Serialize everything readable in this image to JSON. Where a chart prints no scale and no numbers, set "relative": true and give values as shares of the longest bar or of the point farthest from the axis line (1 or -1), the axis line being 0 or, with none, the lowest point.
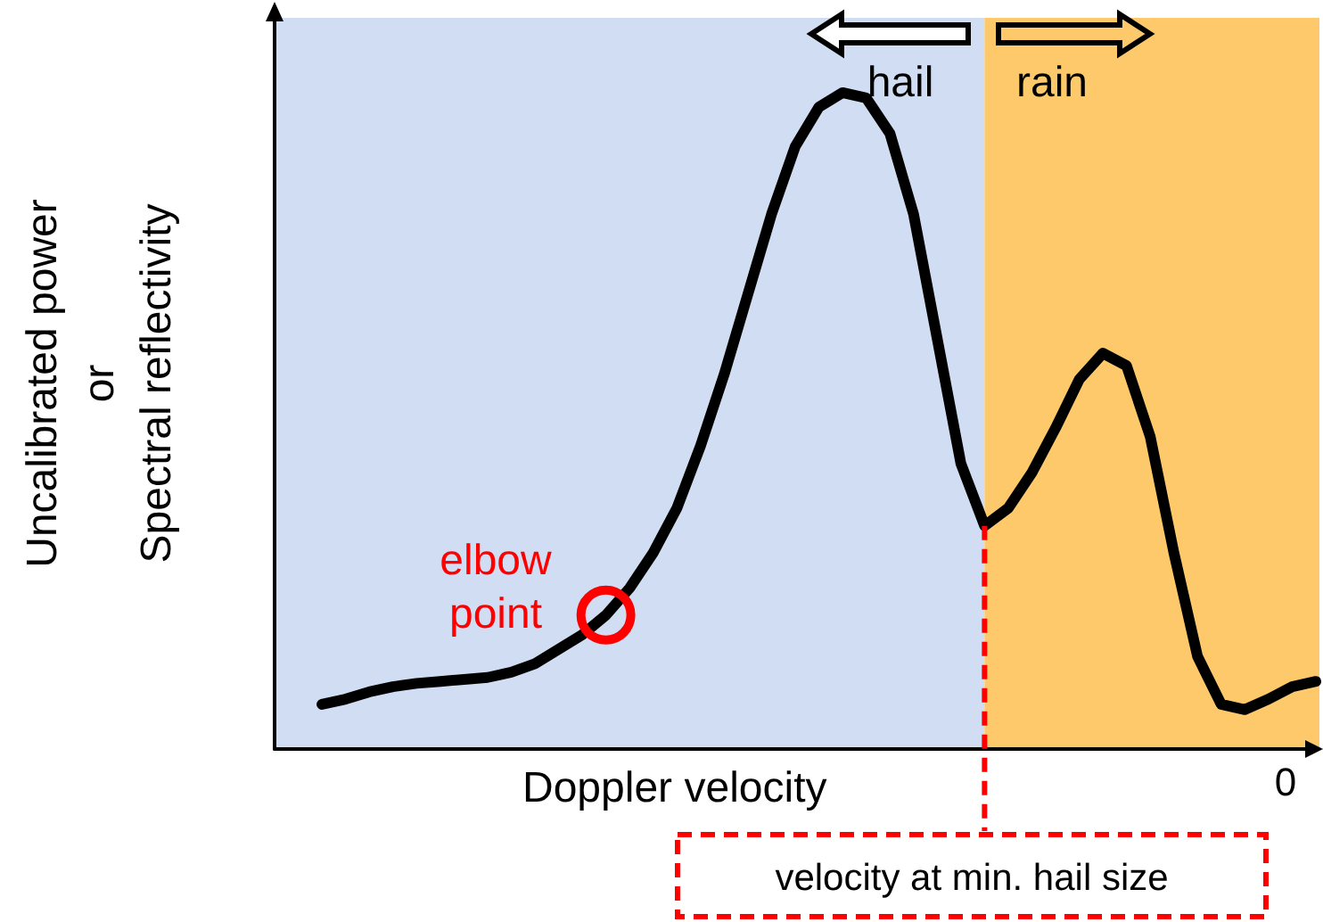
{
  "chart_data": {
    "type": "line",
    "relative": true,
    "xlabel": "Doppler velocity",
    "ylabel": "Uncalibrated power\nor\nSpectral reflectivity",
    "categories": [
      null,
      null,
      null,
      null,
      null,
      null,
      null,
      null,
      null,
      null,
      null,
      null,
      null,
      null,
      null,
      null,
      null,
      null,
      null,
      null,
      null,
      null,
      null,
      null,
      null,
      null,
      null,
      null,
      null,
      null,
      null,
      null,
      null,
      null,
      null,
      null,
      null,
      null,
      null,
      null,
      null,
      null,
      null,
      null,
      null
    ],
    "series": [
      {
        "color": "#000000",
        "values": [
          null,
          null,
          0.068,
          0.076,
          0.087,
          0.095,
          0.1,
          0.103,
          0.106,
          0.109,
          0.117,
          0.13,
          0.152,
          0.174,
          0.204,
          0.245,
          0.299,
          0.367,
          0.462,
          0.571,
          0.693,
          0.815,
          0.918,
          0.978,
          1,
          0.992,
          0.938,
          0.815,
          0.625,
          0.435,
          0.34,
          0.367,
          0.421,
          0.489,
          0.563,
          0.603,
          0.584,
          0.476,
          0.299,
          0.141,
          0.068,
          0.06,
          0.076,
          0.095,
          0.103
        ]
      }
    ],
    "annotations": [
      "hail",
      "rain",
      "elbow point",
      "0",
      "velocity at min. hail size"
    ],
    "marker": "none",
    "line_style": "solid",
    "grid": false
  }
}
